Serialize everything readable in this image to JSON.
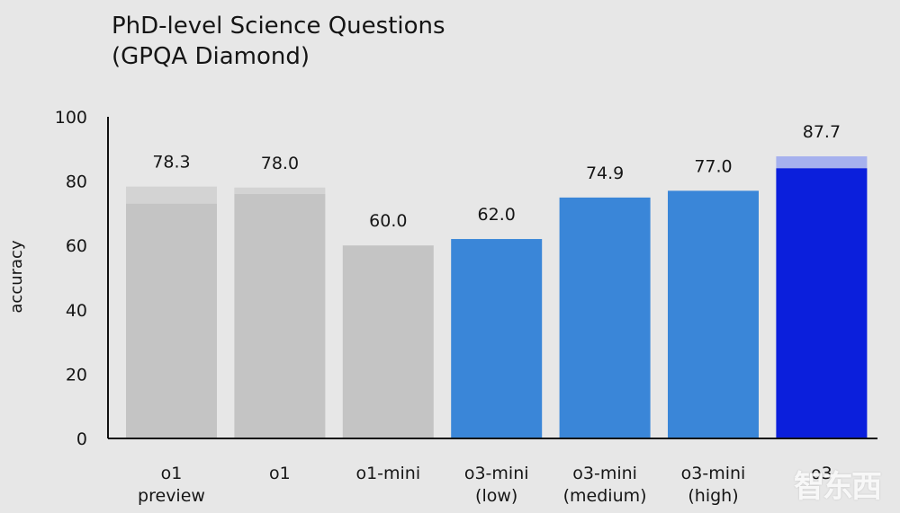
{
  "chart_data": {
    "type": "bar",
    "title": "PhD-level Science Questions",
    "subtitle": "(GPQA Diamond)",
    "ylabel": "accuracy",
    "xlabel": "",
    "ylim": [
      0,
      100
    ],
    "yticks": [
      0,
      20,
      40,
      60,
      80,
      100
    ],
    "grid": false,
    "categories": [
      [
        "o1",
        "preview"
      ],
      [
        "o1"
      ],
      [
        "o1-mini"
      ],
      [
        "o3-mini",
        "(low)"
      ],
      [
        "o3-mini",
        "(medium)"
      ],
      [
        "o3-mini",
        "(high)"
      ],
      [
        "o3"
      ]
    ],
    "values": [
      78.3,
      78.0,
      60.0,
      62.0,
      74.9,
      77.0,
      87.7
    ],
    "value_labels": [
      "78.3",
      "78.0",
      "60.0",
      "62.0",
      "74.9",
      "77.0",
      "87.7"
    ],
    "base_values": [
      73,
      76,
      60,
      62,
      74.9,
      77.0,
      84
    ],
    "colors": {
      "gray": "#c4c4c4",
      "gray_light": "#d3d3d3",
      "blue": "#3a86d8",
      "dark_blue": "#0b1fdc",
      "dark_blue_light": "#a6b1ee",
      "axis": "#111111"
    },
    "bar_colors": [
      "gray",
      "gray",
      "gray",
      "blue",
      "blue",
      "blue",
      "dark_blue"
    ],
    "watermark": "智东西"
  }
}
